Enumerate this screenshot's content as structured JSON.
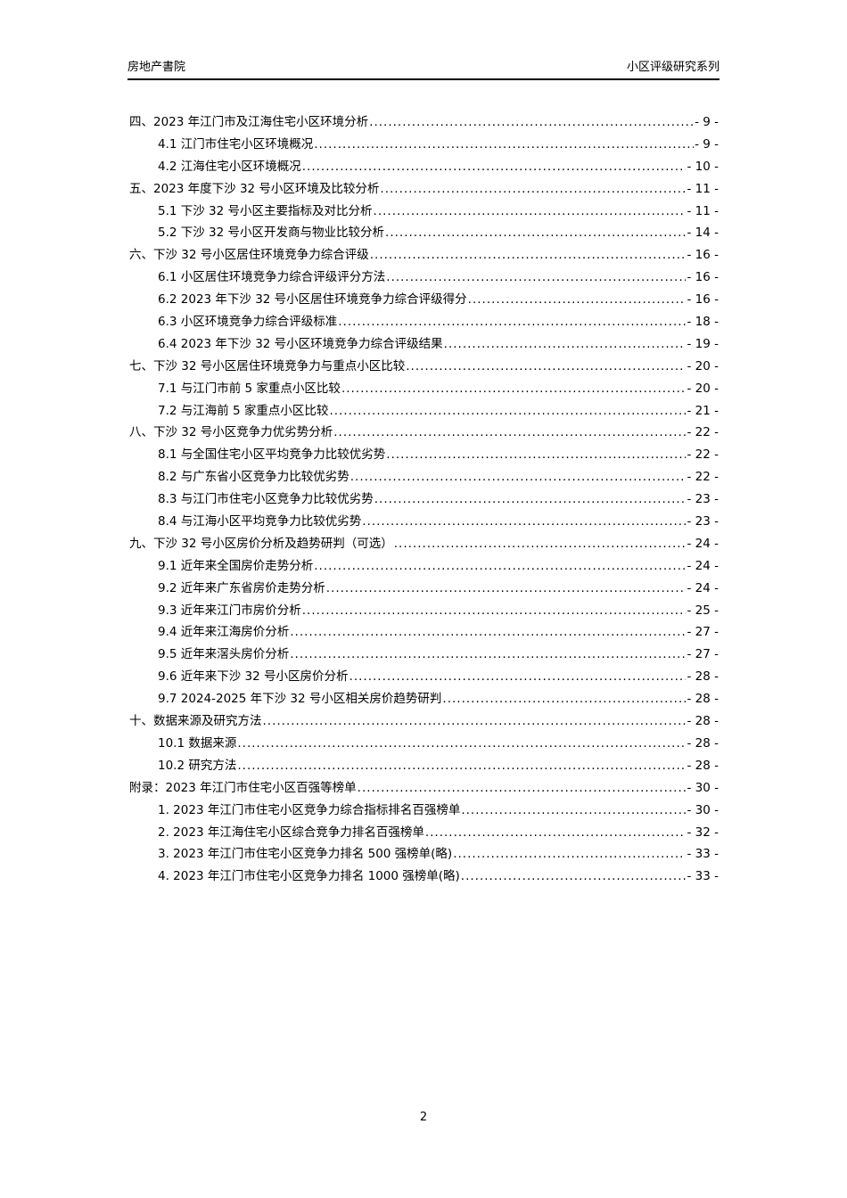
{
  "header": {
    "left": "房地产書院",
    "right": "小区评级研究系列"
  },
  "toc": [
    {
      "level": 1,
      "title": "四、2023 年江门市及江海住宅小区环境分析",
      "page": "- 9 -"
    },
    {
      "level": 2,
      "title": "4.1 江门市住宅小区环境概况",
      "page": "- 9 -"
    },
    {
      "level": 2,
      "title": "4.2 江海住宅小区环境概况",
      "page": "- 10 -"
    },
    {
      "level": 1,
      "title": "五、2023 年度下沙 32 号小区环境及比较分析",
      "page": "- 11 -"
    },
    {
      "level": 2,
      "title": "5.1 下沙 32 号小区主要指标及对比分析",
      "page": "- 11 -"
    },
    {
      "level": 2,
      "title": "5.2 下沙 32 号小区开发商与物业比较分析",
      "page": "- 14 -"
    },
    {
      "level": 1,
      "title": "六、下沙 32 号小区居住环境竞争力综合评级",
      "page": "- 16 -"
    },
    {
      "level": 2,
      "title": "6.1 小区居住环境竞争力综合评级评分方法",
      "page": "- 16 -"
    },
    {
      "level": 2,
      "title": "6.2 2023 年下沙 32 号小区居住环境竞争力综合评级得分",
      "page": "- 16 -"
    },
    {
      "level": 2,
      "title": "6.3 小区环境竞争力综合评级标准",
      "page": "- 18 -"
    },
    {
      "level": 2,
      "title": "6.4 2023 年下沙 32 号小区环境竞争力综合评级结果",
      "page": "- 19 -"
    },
    {
      "level": 1,
      "title": "七、下沙 32 号小区居住环境竞争力与重点小区比较",
      "page": "- 20 -"
    },
    {
      "level": 2,
      "title": "7.1 与江门市前 5 家重点小区比较",
      "page": "- 20 -"
    },
    {
      "level": 2,
      "title": "7.2 与江海前 5 家重点小区比较",
      "page": "- 21 -"
    },
    {
      "level": 1,
      "title": "八、下沙 32 号小区竞争力优劣势分析",
      "page": "- 22 -"
    },
    {
      "level": 2,
      "title": "8.1 与全国住宅小区平均竞争力比较优劣势",
      "page": "- 22 -"
    },
    {
      "level": 2,
      "title": "8.2 与广东省小区竞争力比较优劣势",
      "page": "- 22 -"
    },
    {
      "level": 2,
      "title": "8.3 与江门市住宅小区竞争力比较优劣势",
      "page": "- 23 -"
    },
    {
      "level": 2,
      "title": "8.4 与江海小区平均竞争力比较优劣势",
      "page": "- 23 -"
    },
    {
      "level": 1,
      "title": "九、下沙 32 号小区房价分析及趋势研判（可选）",
      "page": "- 24 -"
    },
    {
      "level": 2,
      "title": "9.1 近年来全国房价走势分析",
      "page": "- 24 -"
    },
    {
      "level": 2,
      "title": "9.2 近年来广东省房价走势分析",
      "page": "- 24 -"
    },
    {
      "level": 2,
      "title": "9.3 近年来江门市房价分析",
      "page": "- 25 -"
    },
    {
      "level": 2,
      "title": "9.4 近年来江海房价分析",
      "page": "- 27 -"
    },
    {
      "level": 2,
      "title": "9.5 近年来滘头房价分析",
      "page": "- 27 -"
    },
    {
      "level": 2,
      "title": "9.6 近年来下沙 32 号小区房价分析",
      "page": "- 28 -"
    },
    {
      "level": 2,
      "title": "9.7 2024-2025 年下沙 32 号小区相关房价趋势研判",
      "page": "- 28 -"
    },
    {
      "level": 1,
      "title": "十、数据来源及研究方法",
      "page": "- 28 -"
    },
    {
      "level": 2,
      "title": "10.1 数据来源",
      "page": "- 28 -"
    },
    {
      "level": 2,
      "title": "10.2 研究方法",
      "page": "- 28 -"
    },
    {
      "level": 1,
      "title": "附录：2023 年江门市住宅小区百强等榜单",
      "page": "- 30 -"
    },
    {
      "level": 2,
      "title": "1. 2023 年江门市住宅小区竞争力综合指标排名百强榜单",
      "page": "- 30 -"
    },
    {
      "level": 2,
      "title": "2. 2023 年江海住宅小区综合竞争力排名百强榜单",
      "page": "- 32 -"
    },
    {
      "level": 2,
      "title": "3. 2023 年江门市住宅小区竞争力排名 500 强榜单(略)",
      "page": "- 33 -"
    },
    {
      "level": 2,
      "title": "4. 2023 年江门市住宅小区竞争力排名 1000 强榜单(略)",
      "page": "- 33 -"
    }
  ],
  "footer": {
    "page_number": "2"
  }
}
